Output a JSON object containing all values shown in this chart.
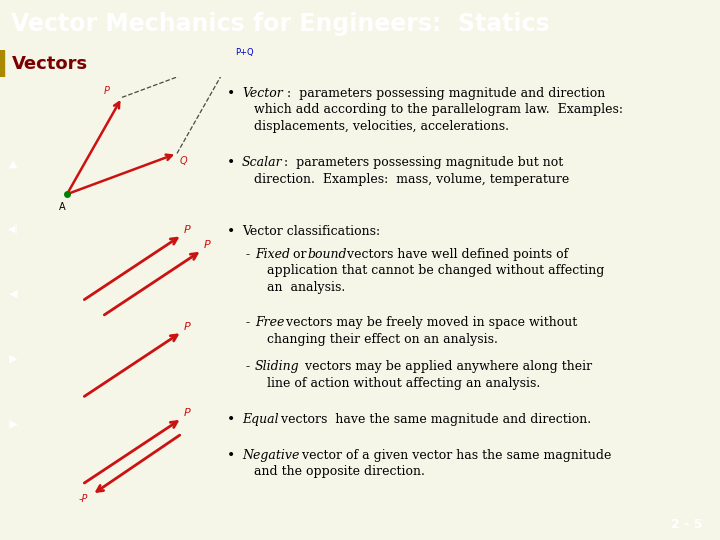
{
  "title": "Vector Mechanics for Engineers:  Statics",
  "subtitle": "Vectors",
  "title_bg": "#7B0000",
  "subtitle_bg": "#FFFFD0",
  "body_bg": "#F5F5E8",
  "nav_bg": "#7B0000",
  "footer_bg": "#7B0000",
  "footer_text": "2 - 5",
  "title_color": "#FFFFFF",
  "subtitle_color": "#7B0000",
  "nav_icon_color": "#FFFFFF",
  "red_arrow": "#CC1111",
  "blue_arrow": "#0000CC",
  "fs_title": 17,
  "fs_subtitle": 13,
  "fs_body": 9,
  "fs_footer": 9
}
